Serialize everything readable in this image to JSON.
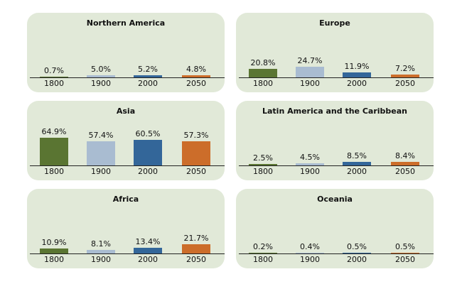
{
  "chart_data": {
    "type": "bar",
    "title": "",
    "categories": [
      "1800",
      "1900",
      "2000",
      "2050"
    ],
    "colors": [
      "#5a7532",
      "#a9bcd1",
      "#336699",
      "#cc6d2a"
    ],
    "panel_color": "#e1e9d8",
    "panels": [
      {
        "title": "Northern America",
        "values": [
          0.7,
          5.0,
          5.2,
          4.8
        ],
        "labels": [
          "0.7%",
          "5.0%",
          "5.2%",
          "4.8%"
        ]
      },
      {
        "title": "Europe",
        "values": [
          20.8,
          24.7,
          11.9,
          7.2
        ],
        "labels": [
          "20.8%",
          "24.7%",
          "11.9%",
          "7.2%"
        ]
      },
      {
        "title": "Asia",
        "values": [
          64.9,
          57.4,
          60.5,
          57.3
        ],
        "labels": [
          "64.9%",
          "57.4%",
          "60.5%",
          "57.3%"
        ]
      },
      {
        "title": "Latin America and the Caribbean",
        "values": [
          2.5,
          4.5,
          8.5,
          8.4
        ],
        "labels": [
          "2.5%",
          "4.5%",
          "8.5%",
          "8.4%"
        ]
      },
      {
        "title": "Africa",
        "values": [
          10.9,
          8.1,
          13.4,
          21.7
        ],
        "labels": [
          "10.9%",
          "8.1%",
          "13.4%",
          "21.7%"
        ]
      },
      {
        "title": "Oceania",
        "values": [
          0.2,
          0.4,
          0.5,
          0.5
        ],
        "labels": [
          "0.2%",
          "0.4%",
          "0.5%",
          "0.5%"
        ]
      }
    ],
    "xlabel": "",
    "ylabel": "",
    "ylim": [
      0,
      70
    ],
    "grid": false,
    "legend": "none"
  }
}
